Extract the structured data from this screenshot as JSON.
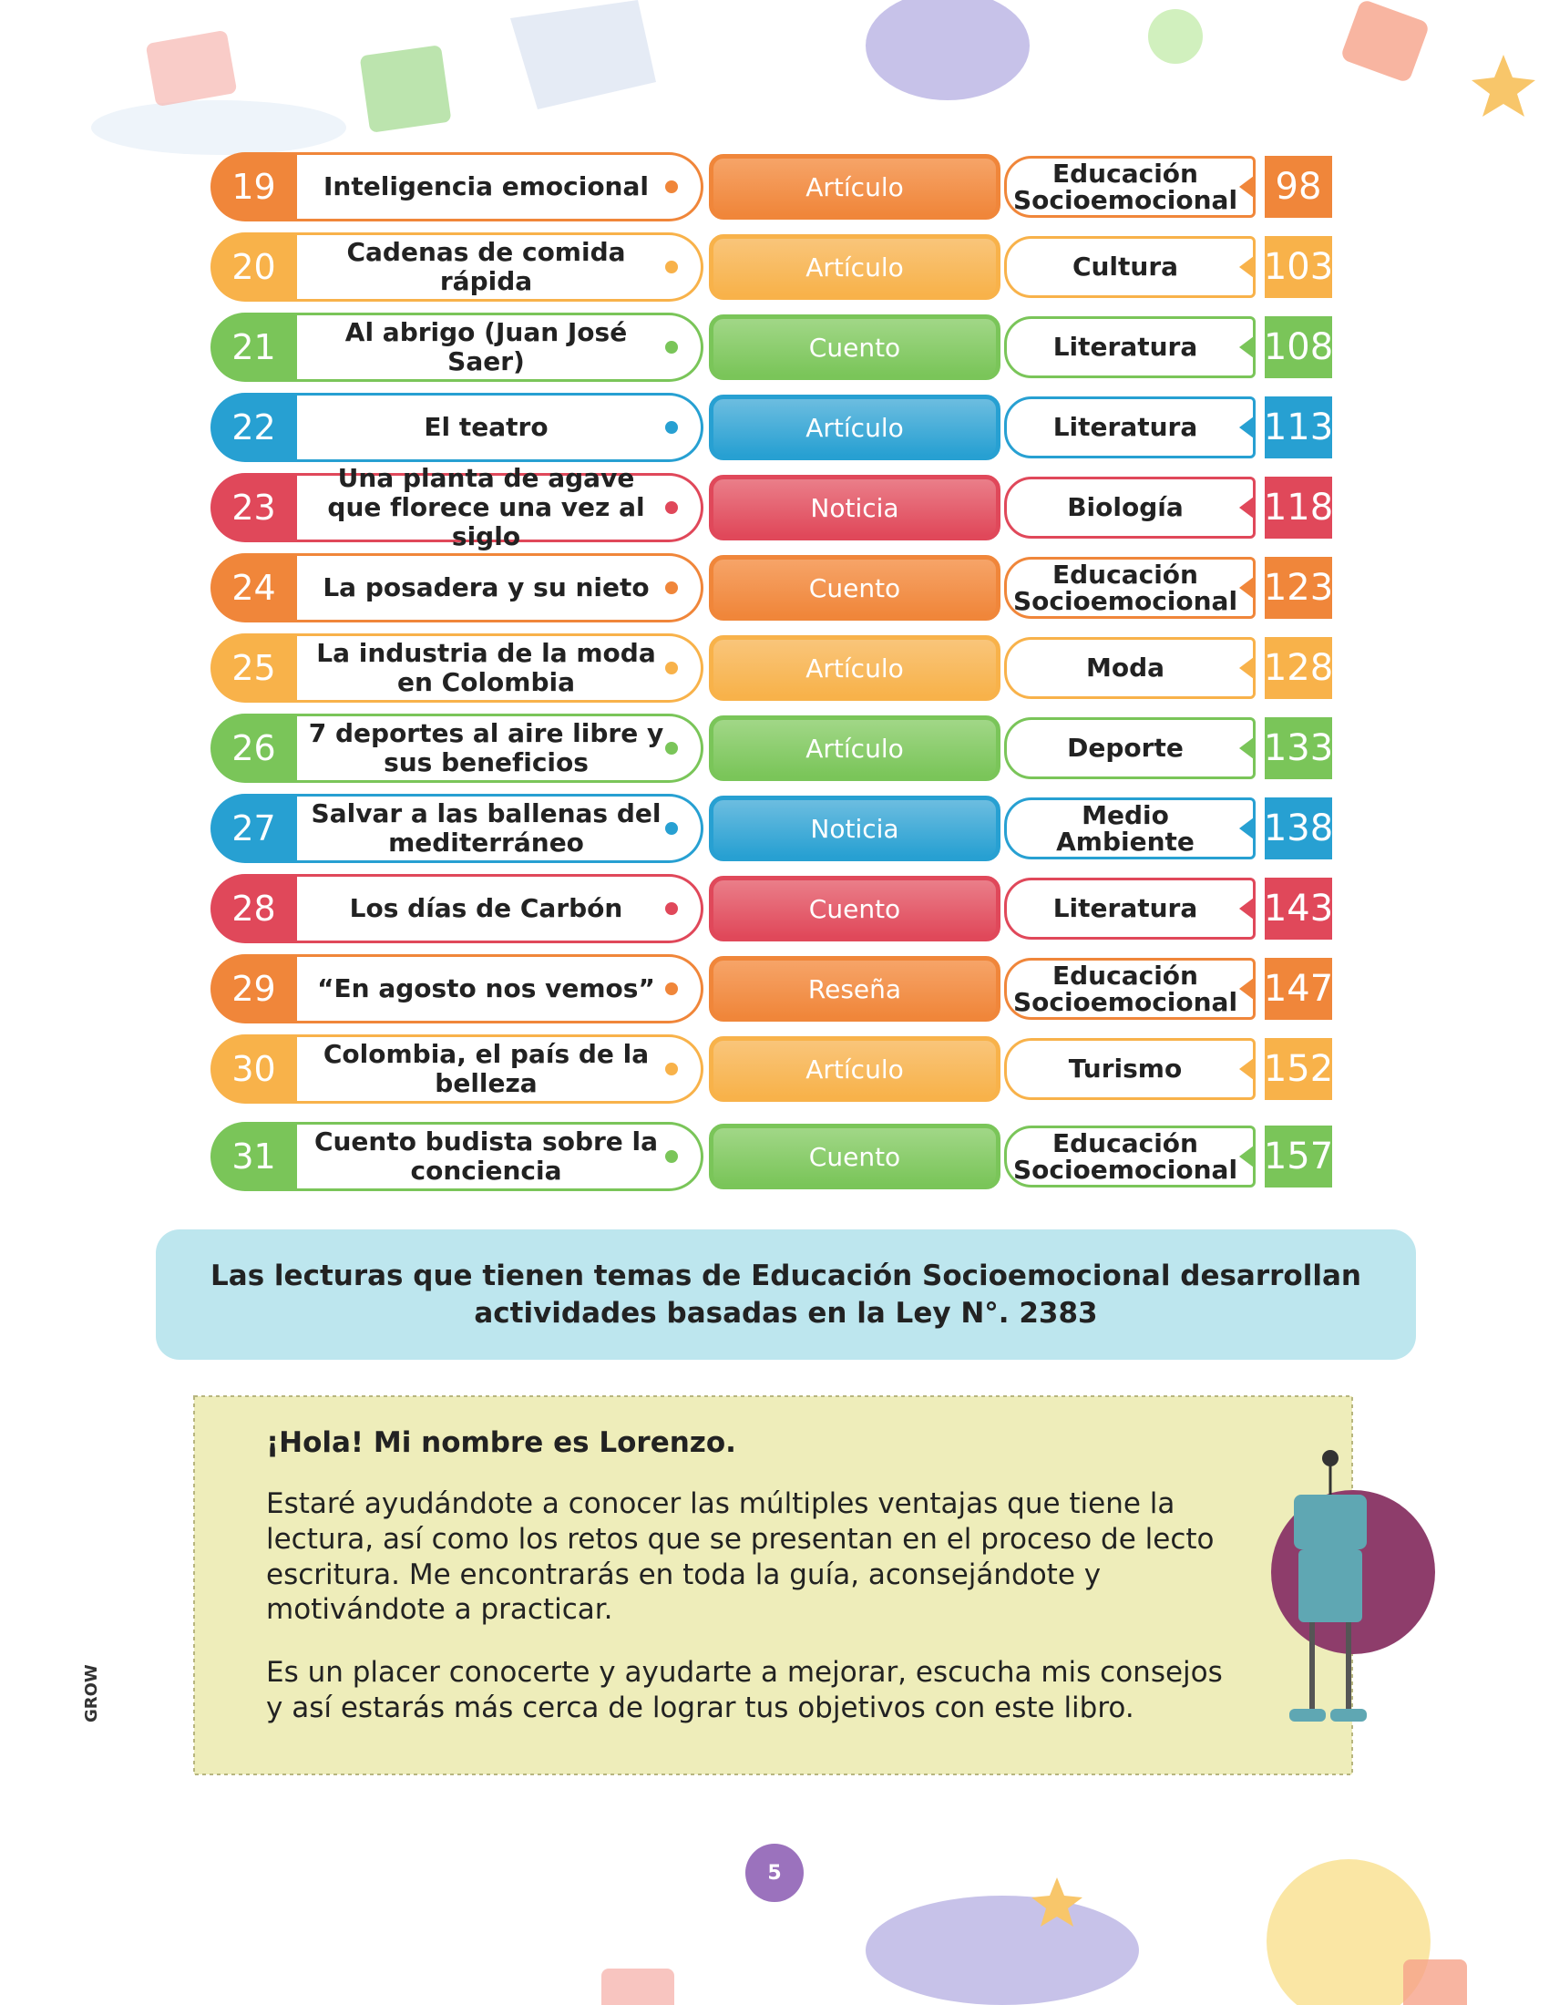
{
  "contents": [
    {
      "number": 19,
      "title": "Inteligencia emocional",
      "type": "Artículo",
      "subject": "Educación Socioemocional",
      "page": 98
    },
    {
      "number": 20,
      "title": "Cadenas de comida rápida",
      "type": "Artículo",
      "subject": "Cultura",
      "page": 103
    },
    {
      "number": 21,
      "title": "Al abrigo (Juan José Saer)",
      "type": "Cuento",
      "subject": "Literatura",
      "page": 108
    },
    {
      "number": 22,
      "title": "El teatro",
      "type": "Artículo",
      "subject": "Literatura",
      "page": 113
    },
    {
      "number": 23,
      "title": "Una planta de agave que florece una vez al siglo",
      "type": "Noticia",
      "subject": "Biología",
      "page": 118
    },
    {
      "number": 24,
      "title": "La posadera y su nieto",
      "type": "Cuento",
      "subject": "Educación Socioemocional",
      "page": 123
    },
    {
      "number": 25,
      "title": "La industria de la moda en Colombia",
      "type": "Artículo",
      "subject": "Moda",
      "page": 128
    },
    {
      "number": 26,
      "title": "7 deportes al aire libre y sus beneficios",
      "type": "Artículo",
      "subject": "Deporte",
      "page": 133
    },
    {
      "number": 27,
      "title": "Salvar a las ballenas del mediterráneo",
      "type": "Noticia",
      "subject": "Medio Ambiente",
      "page": 138
    },
    {
      "number": 28,
      "title": "Los días de Carbón",
      "type": "Cuento",
      "subject": "Literatura",
      "page": 143
    },
    {
      "number": 29,
      "title": "“En agosto nos vemos”",
      "type": "Reseña",
      "subject": "Educación Socioemocional",
      "page": 147
    },
    {
      "number": 30,
      "title": "Colombia, el país de la belleza",
      "type": "Artículo",
      "subject": "Turismo",
      "page": 152
    },
    {
      "number": 31,
      "title": "Cuento budista sobre la conciencia",
      "type": "Cuento",
      "subject": "Educación Socioemocional",
      "page": 157
    }
  ],
  "note": "Las lecturas que tienen temas de Educación Socioemocional desarrollan actividades basadas en la Ley N°. 2383",
  "lorenzo": {
    "greeting": "¡Hola! Mi nombre es Lorenzo.",
    "paragraphs": [
      "Estaré ayudándote a conocer las múltiples ventajas que tiene la lectura, así como los retos que se presentan en el proceso de lecto escritura. Me encontrarás en toda la guía, aconsejándote y motivándote a practicar.",
      "Es un placer conocerte y ayudarte a mejorar, escucha mis consejos y así estarás más cerca de lograr tus objetivos con este libro."
    ]
  },
  "brand": "GROW",
  "page_number": 5
}
